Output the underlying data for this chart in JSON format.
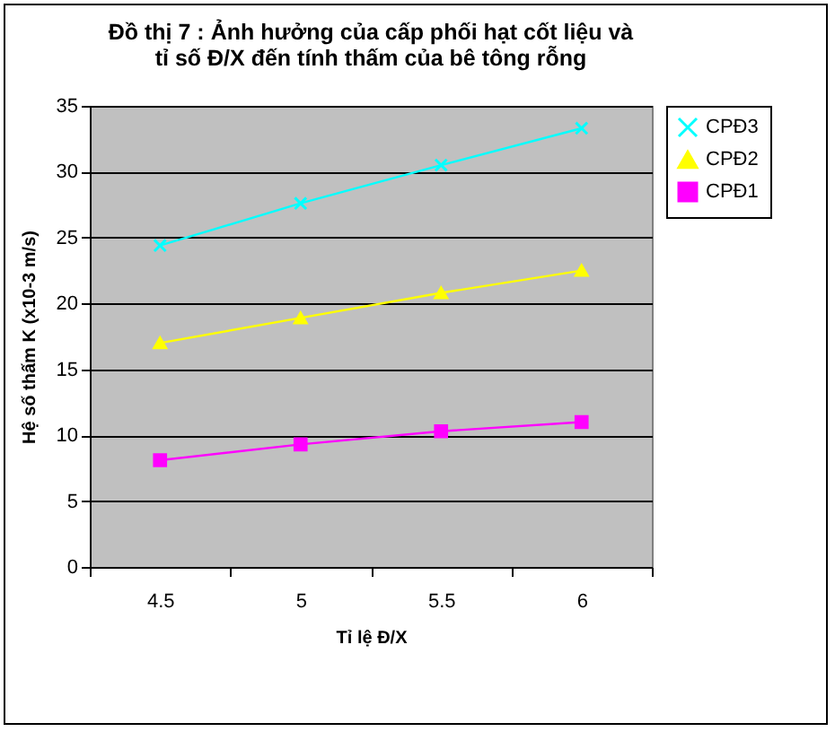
{
  "chart_data": {
    "type": "line",
    "title": "Đồ thị 7 : Ảnh hưởng của cấp phối hạt cốt liệu và\ntỉ số Đ/X đến tính thấm của bê tông rỗng",
    "xlabel": "Tỉ lệ Đ/X",
    "ylabel": "Hệ số thấm K (x10-3 m/s)",
    "categories": [
      "4.5",
      "5",
      "5.5",
      "6"
    ],
    "series": [
      {
        "name": "CPĐ3",
        "color": "#00ffff",
        "marker": "cross",
        "values": [
          24.4,
          27.6,
          30.5,
          33.3
        ]
      },
      {
        "name": "CPĐ2",
        "color": "#ffff00",
        "marker": "triangle",
        "values": [
          17.0,
          18.9,
          20.8,
          22.5
        ]
      },
      {
        "name": "CPĐ1",
        "color": "#ff00ff",
        "marker": "square",
        "values": [
          8.1,
          9.3,
          10.3,
          11.0
        ]
      }
    ],
    "ylim": [
      0,
      35
    ],
    "yticks": [
      0,
      5,
      10,
      15,
      20,
      25,
      30,
      35
    ],
    "grid": "y",
    "legend": "right"
  }
}
